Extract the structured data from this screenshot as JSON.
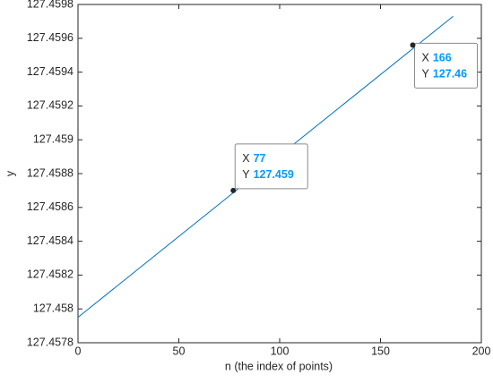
{
  "chart_data": {
    "type": "line",
    "xlabel": "n (the index of points)",
    "ylabel": "y",
    "xlim": [
      0,
      200
    ],
    "xticks": [
      0,
      50,
      100,
      150,
      200
    ],
    "ylim": [
      127.4578,
      127.4598
    ],
    "yticks": [
      127.4578,
      127.458,
      127.4582,
      127.4584,
      127.4586,
      127.4588,
      127.459,
      127.4592,
      127.4594,
      127.4596,
      127.4598
    ],
    "series": [
      {
        "color": "#0072bd",
        "x": [
          0,
          186
        ],
        "values": [
          127.45795,
          127.45973
        ]
      }
    ],
    "datatips": [
      {
        "x_name": "X",
        "y_name": "Y",
        "x": 77,
        "y": 127.4587,
        "y_label": "127.459"
      },
      {
        "x_name": "X",
        "y_name": "Y",
        "x": 166,
        "y": 127.45956,
        "y_label": "127.46"
      }
    ]
  }
}
